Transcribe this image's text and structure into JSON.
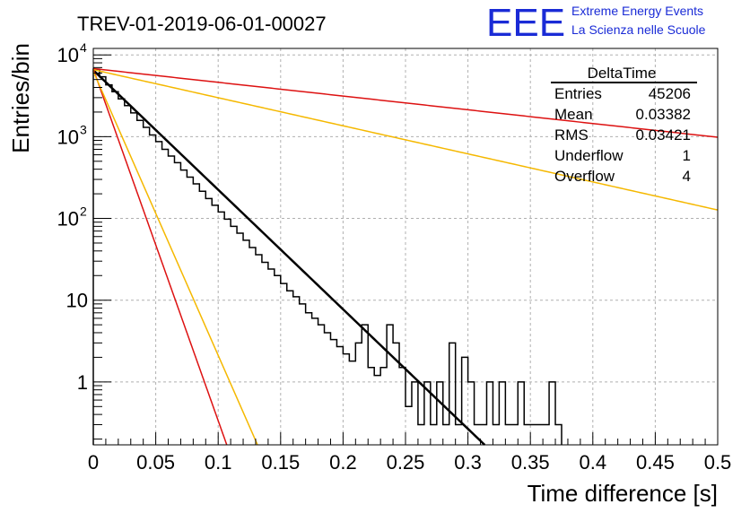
{
  "header": {
    "run_title": "TREV-01-2019-06-01-00027",
    "logo_text": "EEE",
    "project_line1": "Extreme Energy Events",
    "project_line2": "La Scienza nelle Scuole",
    "brand_color": "#1a2bd6"
  },
  "stats_box": {
    "title": "DeltaTime",
    "rows": [
      {
        "label": "Entries",
        "value": "45206"
      },
      {
        "label": "Mean",
        "value": "0.03382"
      },
      {
        "label": "RMS",
        "value": "0.03421"
      },
      {
        "label": "Underflow",
        "value": "1"
      },
      {
        "label": "Overflow",
        "value": "4"
      }
    ]
  },
  "chart_data": {
    "type": "histogram",
    "title": "TREV-01-2019-06-01-00027",
    "xlabel": "Time difference [s]",
    "ylabel": "Entries/bin",
    "xlim": [
      0,
      0.5
    ],
    "ylim": [
      0.17,
      12000
    ],
    "yscale": "log",
    "grid": true,
    "x_ticks": [
      "0",
      "0.05",
      "0.1",
      "0.15",
      "0.2",
      "0.25",
      "0.3",
      "0.35",
      "0.4",
      "0.45",
      "0.5"
    ],
    "x_tick_values": [
      0,
      0.05,
      0.1,
      0.15,
      0.2,
      0.25,
      0.3,
      0.35,
      0.4,
      0.45,
      0.5
    ],
    "y_ticks": [
      "10^4",
      "10^3",
      "10^2",
      "10",
      "1"
    ],
    "y_tick_values": [
      10000,
      1000,
      100,
      10,
      1
    ],
    "histogram": {
      "bin_width": 0.005,
      "x_start": 0,
      "values": [
        6700,
        5400,
        4300,
        3550,
        2900,
        2400,
        1950,
        1580,
        1300,
        1050,
        870,
        700,
        580,
        480,
        390,
        320,
        265,
        215,
        175,
        145,
        120,
        98,
        80,
        66,
        54,
        44,
        36,
        29,
        24,
        20,
        16,
        13,
        11,
        9,
        7,
        6,
        5,
        4,
        3.3,
        2.7,
        2.2,
        1.8,
        3,
        5,
        1.5,
        1.2,
        1.5,
        5,
        3,
        1.5,
        0.5,
        1,
        0.3,
        1,
        0.3,
        1,
        0.3,
        3,
        0.3,
        2,
        1,
        0.3,
        0.3,
        1,
        0.3,
        1,
        0.3,
        0.3,
        1,
        0.3,
        0.3,
        0.3,
        0.3,
        1,
        0.3
      ],
      "color": "#000000"
    },
    "fits": [
      {
        "color": "#000000",
        "a": 6500,
        "tau": 0.0297,
        "x_range": [
          0,
          0.36
        ],
        "width": 2.5
      },
      {
        "color": "#dd1111",
        "a": 6700,
        "tau": 0.0101,
        "x_range": [
          0,
          0.12
        ],
        "width": 1.5
      },
      {
        "color": "#f5b800",
        "a": 6300,
        "tau": 0.0125,
        "x_range": [
          0,
          0.15
        ],
        "width": 1.5
      },
      {
        "color": "#dd1111",
        "a": 6800,
        "tau": 0.2586,
        "x_range": [
          0,
          0.5
        ],
        "width": 1.5
      },
      {
        "color": "#f5b800",
        "a": 6600,
        "tau": 0.1265,
        "x_range": [
          0,
          0.5
        ],
        "width": 1.5
      }
    ]
  }
}
